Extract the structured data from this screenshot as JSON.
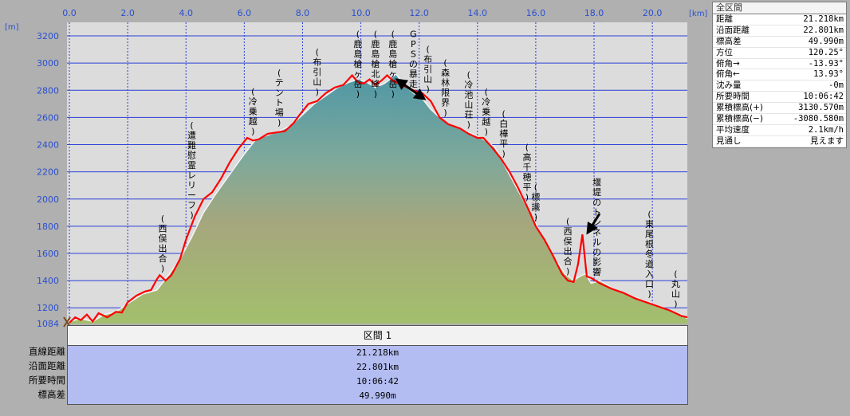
{
  "chart_data": {
    "type": "area",
    "x_unit": "[km]",
    "y_unit": "[m]",
    "xlim": [
      0,
      21.2
    ],
    "ylim": [
      1084,
      3300
    ],
    "x_ticks": [
      0,
      2,
      4,
      6,
      8,
      10,
      12,
      14,
      16,
      18,
      20
    ],
    "x_tick_labels": [
      "0.0",
      "2.0",
      "4.0",
      "6.0",
      "8.0",
      "10.0",
      "12.0",
      "14.0",
      "16.0",
      "18.0",
      "20.0"
    ],
    "y_ticks": [
      1084,
      1200,
      1400,
      1600,
      1800,
      2000,
      2200,
      2400,
      2600,
      2800,
      3000,
      3200
    ],
    "y_tick_labels": [
      "1084",
      "1200",
      "1400",
      "1600",
      "1800",
      "2000",
      "2200",
      "2400",
      "2600",
      "2800",
      "3000",
      "3200"
    ],
    "series": [
      {
        "role": "gps-track",
        "color": "#ff0000",
        "x": [
          0,
          0.2,
          0.4,
          0.6,
          0.8,
          1.0,
          1.3,
          1.6,
          1.8,
          2.0,
          2.3,
          2.6,
          2.8,
          3.0,
          3.1,
          3.3,
          3.5,
          3.8,
          4.0,
          4.3,
          4.6,
          4.9,
          5.2,
          5.5,
          5.8,
          6.1,
          6.3,
          6.5,
          6.8,
          7.1,
          7.4,
          7.7,
          7.9,
          8.2,
          8.5,
          8.8,
          9.1,
          9.4,
          9.7,
          9.9,
          10.1,
          10.3,
          10.5,
          10.7,
          10.9,
          11.1,
          11.3,
          11.5,
          11.8,
          12.1,
          12.4,
          12.7,
          13.0,
          13.4,
          13.7,
          14.0,
          14.2,
          14.5,
          14.8,
          15.1,
          15.4,
          15.6,
          15.8,
          16.0,
          16.3,
          16.6,
          16.9,
          17.1,
          17.3,
          17.45,
          17.6,
          17.75,
          17.9,
          18.2,
          18.6,
          19.0,
          19.4,
          19.8,
          20.2,
          20.6,
          21.0,
          21.2
        ],
        "y": [
          1090,
          1130,
          1110,
          1150,
          1100,
          1160,
          1130,
          1170,
          1165,
          1240,
          1290,
          1320,
          1330,
          1410,
          1440,
          1400,
          1440,
          1560,
          1700,
          1870,
          2000,
          2050,
          2150,
          2270,
          2370,
          2450,
          2430,
          2440,
          2480,
          2490,
          2500,
          2560,
          2620,
          2700,
          2720,
          2780,
          2820,
          2840,
          2910,
          2860,
          2850,
          2880,
          2840,
          2870,
          2910,
          2870,
          2850,
          2830,
          2800,
          2780,
          2720,
          2600,
          2550,
          2520,
          2480,
          2450,
          2450,
          2380,
          2300,
          2200,
          2080,
          1990,
          1900,
          1800,
          1700,
          1580,
          1450,
          1400,
          1390,
          1520,
          1740,
          1430,
          1420,
          1380,
          1340,
          1310,
          1270,
          1240,
          1210,
          1180,
          1140,
          1130
        ]
      },
      {
        "role": "terrain",
        "x": [
          0,
          0.4,
          0.8,
          1.2,
          1.6,
          2.0,
          2.5,
          3.0,
          3.4,
          3.8,
          4.2,
          4.6,
          5.0,
          5.5,
          6.0,
          6.4,
          6.8,
          7.2,
          7.6,
          8.0,
          8.4,
          8.8,
          9.2,
          9.6,
          9.9,
          10.2,
          10.5,
          10.8,
          11.0,
          11.2,
          11.5,
          11.8,
          12.1,
          12.4,
          12.7,
          13.0,
          13.4,
          13.8,
          14.2,
          14.6,
          15.0,
          15.4,
          15.8,
          16.2,
          16.6,
          17.0,
          17.3,
          17.5,
          17.7,
          17.9,
          18.2,
          18.6,
          19.0,
          19.5,
          20.0,
          20.5,
          21.0,
          21.2
        ],
        "y": [
          1100,
          1120,
          1100,
          1150,
          1170,
          1230,
          1300,
          1330,
          1440,
          1560,
          1720,
          1900,
          2030,
          2180,
          2330,
          2440,
          2470,
          2500,
          2540,
          2620,
          2700,
          2760,
          2820,
          2860,
          2880,
          2860,
          2820,
          2850,
          2880,
          2920,
          2840,
          2780,
          2740,
          2660,
          2600,
          2550,
          2520,
          2480,
          2440,
          2380,
          2220,
          2060,
          1900,
          1740,
          1580,
          1450,
          1400,
          1430,
          1450,
          1380,
          1400,
          1350,
          1310,
          1270,
          1230,
          1190,
          1150,
          1120
        ]
      }
    ],
    "annotations": [
      {
        "text": "(西俣出合)",
        "x": 3.2
      },
      {
        "text": "(遭難慰霊レリーフ)",
        "x": 4.2
      },
      {
        "text": "(冷乗越)",
        "x": 6.3
      },
      {
        "text": "(テント場)",
        "x": 7.2
      },
      {
        "text": "(布引山)",
        "x": 8.5
      },
      {
        "text": "(鹿島槍ヶ岳)",
        "x": 9.9
      },
      {
        "text": "(鹿島槍北峰)",
        "x": 10.5
      },
      {
        "text": "(鹿島槍ヶ岳)",
        "x": 11.1
      },
      {
        "text": "GPSの暴走",
        "x": 11.8
      },
      {
        "text": "(布引山)",
        "x": 12.3
      },
      {
        "text": "(森林限界)",
        "x": 12.9
      },
      {
        "text": "(冷池山荘)",
        "x": 13.7
      },
      {
        "text": "(冷乗越)",
        "x": 14.3
      },
      {
        "text": "(白樺平)",
        "x": 14.9
      },
      {
        "text": "(高千穂平)",
        "x": 15.7
      },
      {
        "text": "(標識)",
        "x": 16.0
      },
      {
        "text": "堰堤のトンネルの影響",
        "x": 18.1
      },
      {
        "text": "(西俣出合)",
        "x": 17.1
      },
      {
        "text": "(東尾根冬道入口)",
        "x": 19.9
      },
      {
        "text": "(丸山)",
        "x": 20.8
      }
    ]
  },
  "stats_panel": {
    "title": "全区間",
    "rows": [
      {
        "k": "距離",
        "v": "21.218km"
      },
      {
        "k": "沿面距離",
        "v": "22.801km"
      },
      {
        "k": "標高差",
        "v": "49.990m"
      },
      {
        "k": "方位",
        "v": "120.25°"
      },
      {
        "k": "俯角→",
        "v": "-13.93°"
      },
      {
        "k": "俯角←",
        "v": "13.93°"
      },
      {
        "k": "沈み量",
        "v": "-0m"
      },
      {
        "k": "所要時間",
        "v": "10:06:42"
      },
      {
        "k": "累積標高(+)",
        "v": "3130.570m"
      },
      {
        "k": "累積標高(−)",
        "v": "-3080.580m"
      },
      {
        "k": "平均速度",
        "v": "2.1km/h"
      },
      {
        "k": "見通し",
        "v": "見えます"
      }
    ]
  },
  "section_table": {
    "header": "区間 1",
    "labels": [
      "直線距離",
      "沿面距離",
      "所要時間",
      "標高差"
    ],
    "values": [
      "21.218km",
      "22.801km",
      "10:06:42",
      "49.990m"
    ]
  }
}
